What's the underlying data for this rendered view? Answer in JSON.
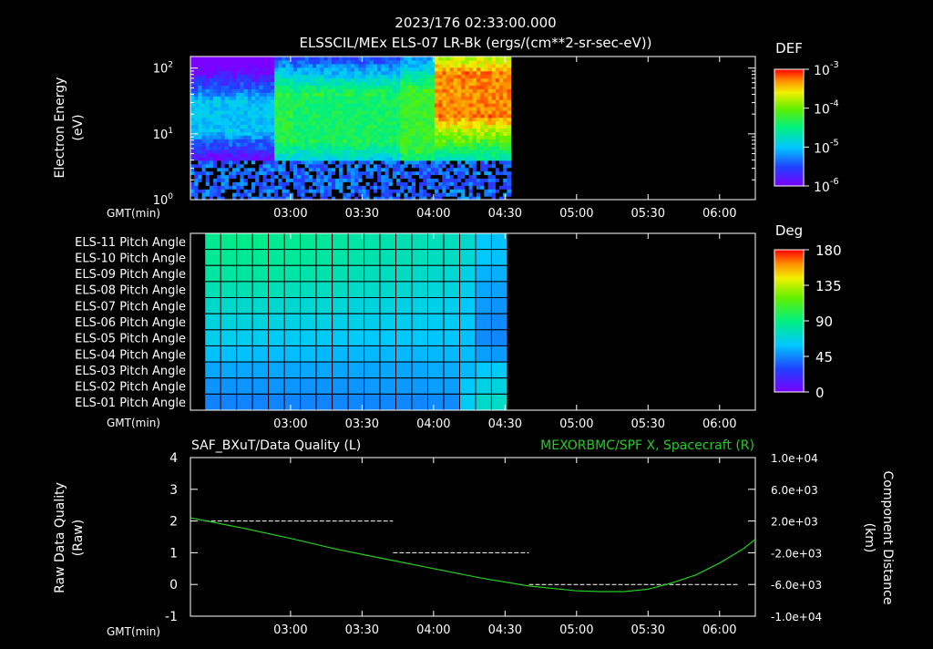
{
  "header": {
    "timestamp": "2023/176 02:33:00.000",
    "subtitle": "ELSSCIL/MEx ELS-07 LR-Bk  (ergs/(cm**2-sr-sec-eV))"
  },
  "time_axis": {
    "label": "GMT(min)",
    "range_min": [
      138,
      375
    ],
    "ticks": [
      {
        "min": 180,
        "label": "03:00"
      },
      {
        "min": 210,
        "label": "03:30"
      },
      {
        "min": 240,
        "label": "04:00"
      },
      {
        "min": 270,
        "label": "04:30"
      },
      {
        "min": 300,
        "label": "05:00"
      },
      {
        "min": 330,
        "label": "05:30"
      },
      {
        "min": 360,
        "label": "06:00"
      }
    ]
  },
  "chart_data": [
    {
      "type": "heatmap",
      "name": "energy-spectrogram",
      "ylabel": [
        "Electron Energy",
        "(eV)"
      ],
      "y_scale": "log",
      "ylim": [
        1,
        150
      ],
      "y_ticks": [
        {
          "base": "10",
          "exp": "0"
        },
        {
          "base": "10",
          "exp": "1"
        },
        {
          "base": "10",
          "exp": "2"
        }
      ],
      "data_time_range_min": [
        138,
        271
      ],
      "colorbar": {
        "title": "DEF",
        "scale": "log",
        "range": [
          1e-06,
          0.001
        ],
        "labels": [
          {
            "base": "10",
            "exp": "-3"
          },
          {
            "base": "10",
            "exp": "-4"
          },
          {
            "base": "10",
            "exp": "-5"
          },
          {
            "base": "10",
            "exp": "-6"
          }
        ]
      },
      "segments": [
        {
          "t": [
            138,
            172
          ],
          "dominant_band_eV": [
            12,
            30
          ],
          "level": "1e-5"
        },
        {
          "t": [
            172,
            180
          ],
          "dominant_band_eV": [
            8,
            40
          ],
          "level": "5e-5"
        },
        {
          "t": [
            180,
            225
          ],
          "dominant_band_eV": [
            8,
            40
          ],
          "level": "4e-5"
        },
        {
          "t": [
            225,
            240
          ],
          "dominant_band_eV": [
            6,
            45
          ],
          "level": "6e-5"
        },
        {
          "t": [
            240,
            271
          ],
          "dominant_band_eV": [
            20,
            80
          ],
          "level": "5e-4"
        }
      ]
    },
    {
      "type": "heatmap",
      "name": "pitch-angle",
      "rows": [
        "ELS-11 Pitch Angle",
        "ELS-10 Pitch Angle",
        "ELS-09 Pitch Angle",
        "ELS-08 Pitch Angle",
        "ELS-07 Pitch Angle",
        "ELS-06 Pitch Angle",
        "ELS-05 Pitch Angle",
        "ELS-04 Pitch Angle",
        "ELS-03 Pitch Angle",
        "ELS-02 Pitch Angle",
        "ELS-01 Pitch Angle"
      ],
      "column_time_range_min": [
        144,
        271
      ],
      "column_count": 19,
      "values_deg": [
        [
          86,
          87,
          87,
          87,
          86,
          86,
          85,
          84,
          82,
          81,
          80,
          79,
          78,
          77,
          76,
          75,
          72,
          60,
          58
        ],
        [
          85,
          85,
          85,
          85,
          84,
          84,
          83,
          82,
          81,
          80,
          79,
          78,
          77,
          76,
          75,
          74,
          70,
          60,
          58
        ],
        [
          82,
          82,
          82,
          82,
          82,
          81,
          80,
          79,
          78,
          77,
          76,
          75,
          74,
          73,
          72,
          70,
          66,
          55,
          54
        ],
        [
          78,
          78,
          78,
          78,
          77,
          76,
          75,
          75,
          74,
          73,
          73,
          72,
          71,
          70,
          69,
          68,
          64,
          52,
          51
        ],
        [
          72,
          72,
          72,
          72,
          71,
          71,
          70,
          70,
          69,
          68,
          68,
          67,
          66,
          66,
          65,
          64,
          60,
          49,
          48
        ],
        [
          68,
          68,
          68,
          68,
          67,
          66,
          66,
          66,
          65,
          65,
          64,
          64,
          63,
          63,
          62,
          62,
          60,
          47,
          46
        ],
        [
          64,
          64,
          63,
          63,
          62,
          62,
          62,
          61,
          61,
          61,
          60,
          60,
          60,
          60,
          59,
          59,
          58,
          46,
          45
        ],
        [
          58,
          58,
          58,
          57,
          57,
          57,
          57,
          56,
          56,
          56,
          56,
          56,
          56,
          56,
          56,
          56,
          57,
          50,
          49
        ],
        [
          52,
          52,
          52,
          52,
          52,
          52,
          52,
          52,
          52,
          52,
          52,
          52,
          52,
          52,
          53,
          53,
          56,
          60,
          61
        ],
        [
          48,
          48,
          48,
          48,
          48,
          48,
          48,
          48,
          48,
          48,
          49,
          49,
          49,
          49,
          50,
          50,
          60,
          66,
          67
        ],
        [
          44,
          44,
          44,
          44,
          44,
          44,
          44,
          44,
          45,
          45,
          45,
          45,
          45,
          45,
          46,
          46,
          62,
          72,
          73
        ]
      ],
      "colorbar": {
        "title": "Deg",
        "range": [
          0,
          180
        ],
        "labels": [
          "180",
          "135",
          "90",
          "45",
          "0"
        ]
      }
    },
    {
      "type": "line",
      "name": "quality-and-position",
      "left_title": "SAF_BXuT/Data Quality (L)",
      "right_title": "MEXORBMC/SPF X, Spacecraft (R)",
      "ylabel_left": [
        "Raw Data Quality",
        "(Raw)"
      ],
      "ylabel_right": [
        "Component Distance",
        "(km)"
      ],
      "ylim_left": [
        -1,
        4
      ],
      "ylim_right": [
        -10000,
        10000
      ],
      "y_ticks_left": [
        "4",
        "3",
        "2",
        "1",
        "0",
        "-1"
      ],
      "y_ticks_right": [
        "1.0e+04",
        "6.0e+03",
        "2.0e+03",
        "-2.0e+03",
        "-6.0e+03",
        "-1.0e+04"
      ],
      "series": [
        {
          "name": "SAF_BXuT/Data Quality",
          "axis": "left",
          "color": "#ffffff",
          "style": "dashed",
          "segments": [
            {
              "t": [
                144,
                223
              ],
              "value": 2
            },
            {
              "t": [
                223,
                280
              ],
              "value": 1
            },
            {
              "t": [
                280,
                368
              ],
              "value": 0
            }
          ]
        },
        {
          "name": "MEXORBMC/SPF X, Spacecraft",
          "axis": "right",
          "color": "#22cc22",
          "x": [
            138,
            160,
            180,
            200,
            220,
            240,
            260,
            280,
            300,
            310,
            320,
            330,
            340,
            350,
            360,
            370,
            375
          ],
          "y": [
            2400,
            1100,
            -200,
            -1600,
            -2800,
            -4000,
            -5200,
            -6200,
            -6800,
            -6900,
            -6900,
            -6600,
            -5800,
            -4800,
            -3300,
            -1500,
            -300
          ]
        }
      ]
    }
  ]
}
